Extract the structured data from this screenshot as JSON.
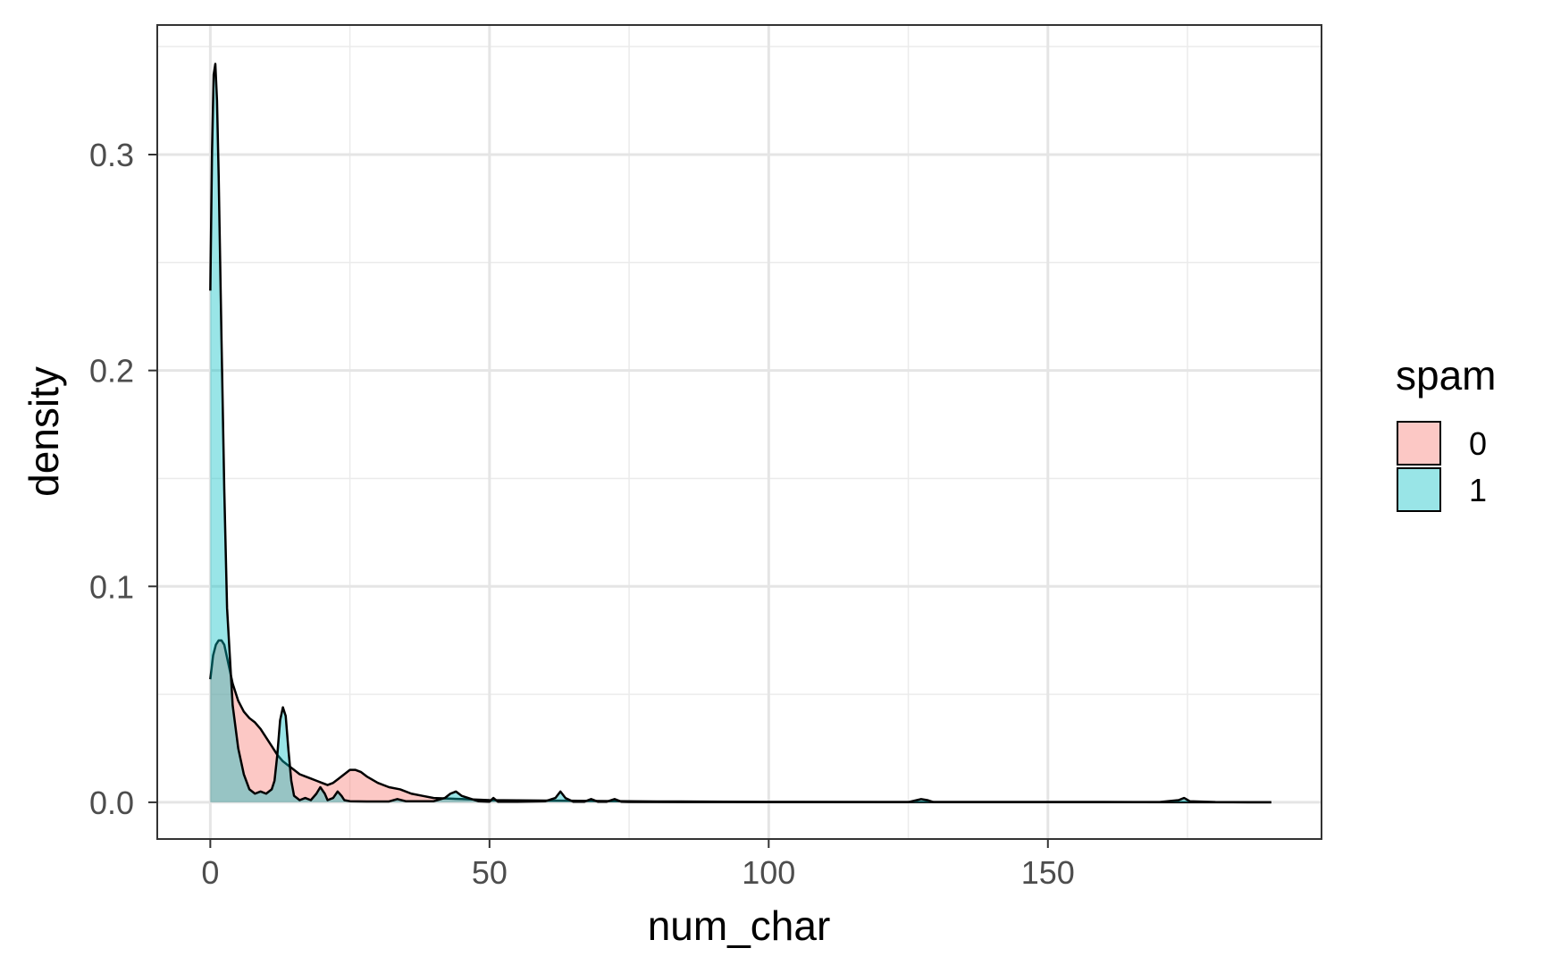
{
  "chart_data": {
    "type": "area",
    "xlabel": "num_char",
    "ylabel": "density",
    "xlim": [
      -9.5,
      199
    ],
    "ylim": [
      -0.017,
      0.36
    ],
    "x_ticks": [
      0,
      50,
      100,
      150
    ],
    "x_tick_labels": [
      "0",
      "50",
      "100",
      "150"
    ],
    "x_minor_ticks": [
      25,
      75,
      125,
      175
    ],
    "y_ticks": [
      0.0,
      0.1,
      0.2,
      0.3
    ],
    "y_tick_labels": [
      "0.0",
      "0.1",
      "0.2",
      "0.3"
    ],
    "y_minor_ticks": [
      0.05,
      0.15,
      0.25,
      0.35
    ],
    "grid": true,
    "legend": {
      "title": "spam",
      "position": "right",
      "entries": [
        "0",
        "1"
      ]
    },
    "series": [
      {
        "name": "0",
        "color": "#F8766D",
        "x": [
          0,
          0.5,
          1,
          1.5,
          2,
          2.5,
          3,
          4,
          5,
          6,
          7,
          8,
          9,
          10,
          11,
          12,
          13,
          14,
          15,
          16,
          17,
          18,
          19,
          20,
          21,
          22,
          23,
          24,
          25,
          26,
          27,
          28,
          30,
          32,
          34,
          36,
          38,
          40,
          45,
          50,
          60,
          70,
          80,
          100,
          120,
          140,
          160,
          190
        ],
        "y": [
          0.057,
          0.068,
          0.073,
          0.075,
          0.075,
          0.073,
          0.067,
          0.055,
          0.047,
          0.042,
          0.039,
          0.037,
          0.034,
          0.03,
          0.026,
          0.022,
          0.019,
          0.017,
          0.015,
          0.013,
          0.012,
          0.011,
          0.01,
          0.009,
          0.008,
          0.009,
          0.011,
          0.013,
          0.015,
          0.015,
          0.014,
          0.012,
          0.009,
          0.007,
          0.006,
          0.004,
          0.003,
          0.002,
          0.0015,
          0.001,
          0.0008,
          0.0006,
          0.0004,
          0.0002,
          0.0001,
          0.0001,
          0.0001,
          0.0
        ]
      },
      {
        "name": "1",
        "color": "#00BFC4",
        "x": [
          0,
          0.3,
          0.6,
          0.9,
          1.2,
          1.5,
          2,
          2.5,
          3,
          4,
          5,
          6,
          7,
          8,
          9,
          10,
          11,
          11.5,
          12,
          12.5,
          13,
          13.5,
          14,
          14.5,
          15,
          16,
          17,
          18,
          19,
          19.7,
          20.5,
          21,
          22,
          22.8,
          23.5,
          24,
          25,
          28,
          32,
          33.5,
          35,
          40,
          42,
          43,
          44,
          45,
          48,
          50,
          50.7,
          51.5,
          55,
          60,
          61.8,
          62.7,
          63.6,
          65,
          67,
          68.2,
          69.4,
          71,
          72.4,
          73.6,
          75,
          90,
          110,
          125,
          127.3,
          128.4,
          129.5,
          135,
          150,
          170,
          173.4,
          174.4,
          175.4,
          180,
          190
        ],
        "y": [
          0.237,
          0.3,
          0.337,
          0.342,
          0.325,
          0.29,
          0.215,
          0.145,
          0.09,
          0.045,
          0.025,
          0.013,
          0.006,
          0.004,
          0.005,
          0.004,
          0.006,
          0.01,
          0.022,
          0.038,
          0.044,
          0.04,
          0.024,
          0.01,
          0.003,
          0.001,
          0.002,
          0.001,
          0.004,
          0.007,
          0.004,
          0.001,
          0.002,
          0.005,
          0.003,
          0.001,
          0.0005,
          0.0004,
          0.0004,
          0.0015,
          0.0005,
          0.0005,
          0.002,
          0.004,
          0.005,
          0.003,
          0.0005,
          0.0003,
          0.002,
          0.0003,
          0.0003,
          0.0005,
          0.002,
          0.005,
          0.002,
          0.0003,
          0.0003,
          0.0015,
          0.0003,
          0.0003,
          0.0015,
          0.0003,
          0.0002,
          0.0001,
          0.0001,
          0.0001,
          0.0015,
          0.001,
          0.0001,
          0.0001,
          0.0001,
          0.0001,
          0.001,
          0.002,
          0.0005,
          0.0001,
          0.0
        ]
      }
    ]
  }
}
